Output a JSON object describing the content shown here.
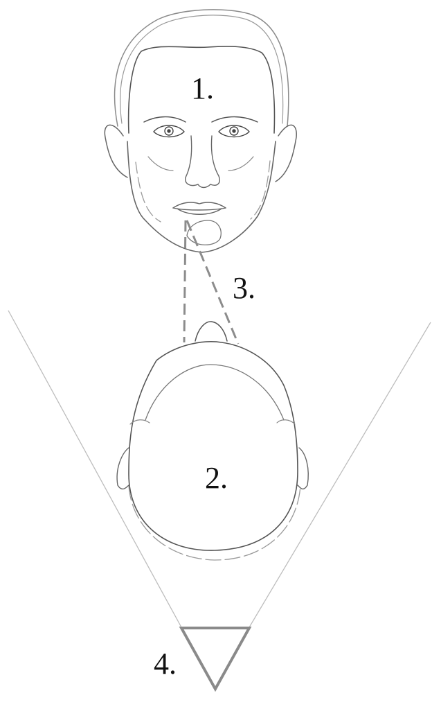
{
  "labels": {
    "front_face": "1.",
    "top_head": "2.",
    "line": "3.",
    "triangle": "4."
  },
  "colors": {
    "stroke_dark": "#555555",
    "stroke_light": "#9a9a9a",
    "dashed": "#8c8c8c",
    "triangle": "#8a8a8a",
    "cone": "#bdbdbd"
  }
}
